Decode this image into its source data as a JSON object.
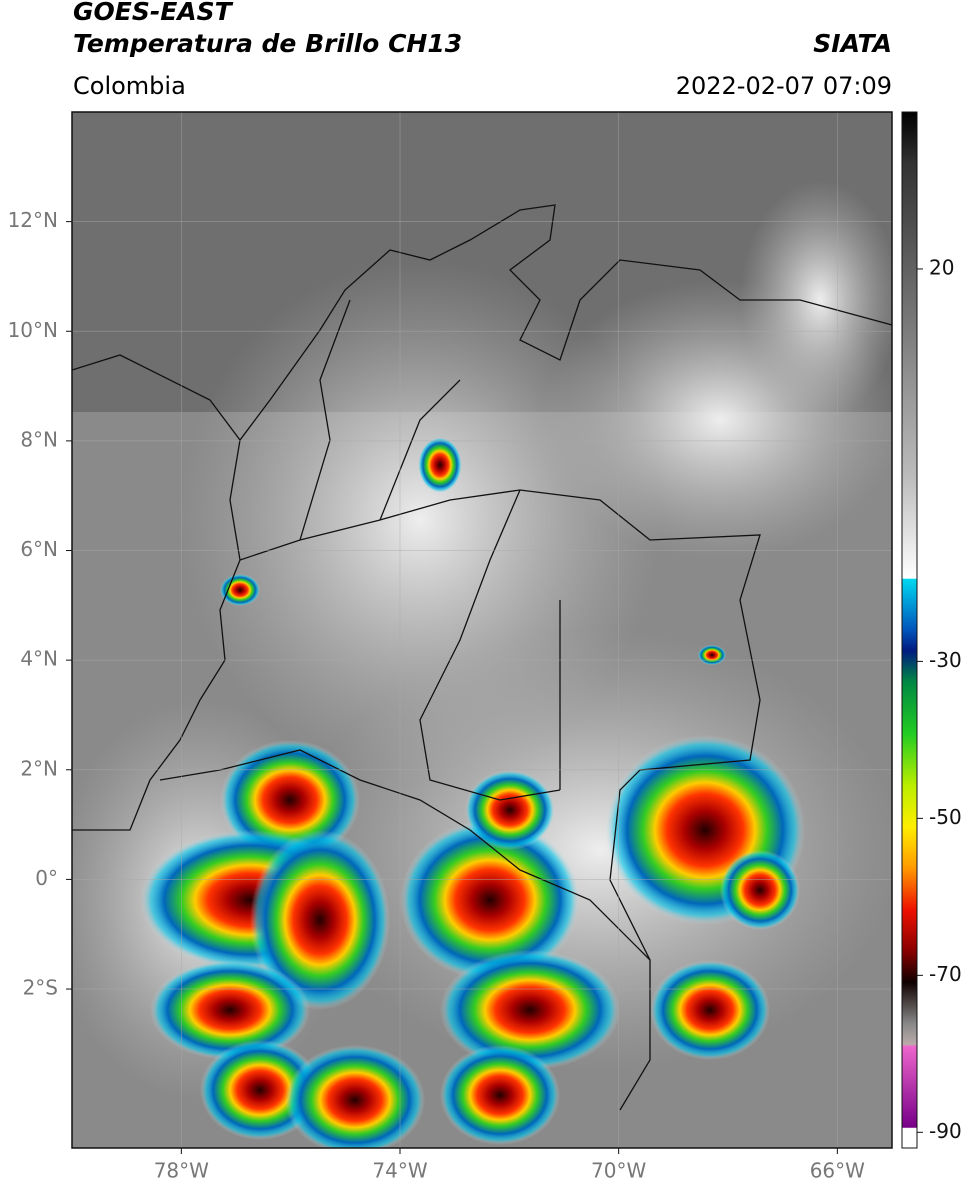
{
  "header": {
    "title": "GOES-EAST",
    "subtitle": "Temperatura de Brillo CH13",
    "source": "SIATA",
    "region": "Colombia",
    "datetime": "2022-02-07 07:09"
  },
  "map": {
    "xlim": [
      -80,
      -65
    ],
    "ylim": [
      -4.9,
      14
    ],
    "xticks": [
      {
        "value": -78,
        "label": "78°W"
      },
      {
        "value": -74,
        "label": "74°W"
      },
      {
        "value": -70,
        "label": "70°W"
      },
      {
        "value": -66,
        "label": "66°W"
      }
    ],
    "yticks": [
      {
        "value": 12,
        "label": "12°N"
      },
      {
        "value": 10,
        "label": "10°N"
      },
      {
        "value": 8,
        "label": "8°N"
      },
      {
        "value": 6,
        "label": "6°N"
      },
      {
        "value": 4,
        "label": "4°N"
      },
      {
        "value": 2,
        "label": "2°N"
      },
      {
        "value": 0,
        "label": "0°"
      },
      {
        "value": -2,
        "label": "2°S"
      }
    ],
    "grid": true
  },
  "colorbar": {
    "lim": [
      -92,
      40
    ],
    "ticks": [
      20,
      -30,
      -50,
      -70,
      -90
    ]
  }
}
